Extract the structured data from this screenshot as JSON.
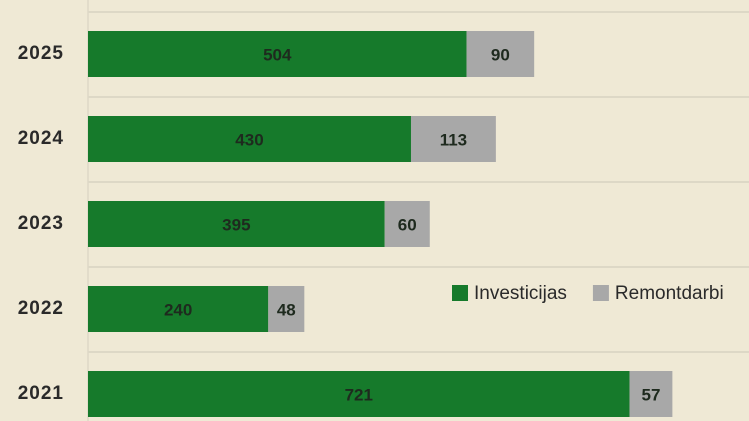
{
  "chart_data": {
    "type": "hbar_stacked",
    "categories": [
      "2025",
      "2024",
      "2023",
      "2022",
      "2021"
    ],
    "series": [
      {
        "name": "Investicijas",
        "color": "#167a2b",
        "values": [
          504,
          430,
          395,
          240,
          721
        ]
      },
      {
        "name": "Remontdarbi",
        "color": "#a8a8a8",
        "values": [
          90,
          113,
          60,
          48,
          57
        ]
      }
    ],
    "xlim": [
      0,
      880
    ]
  }
}
